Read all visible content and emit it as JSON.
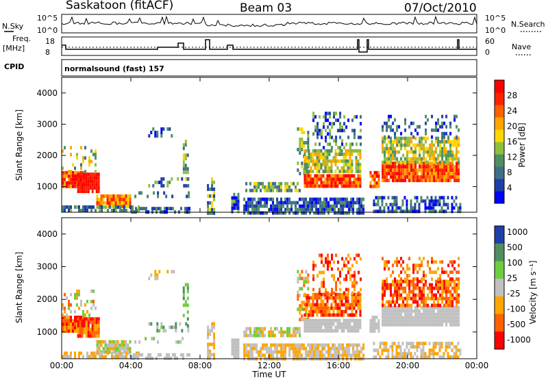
{
  "header": {
    "station": "Saskatoon (fitACF)",
    "beam": "Beam 03",
    "date": "07/Oct/2010"
  },
  "panels": {
    "nsky_label": "N.Sky",
    "nsky_ticks": [
      "10^5",
      "10^0"
    ],
    "nsearch_label": "N.Search",
    "nsearch_ticks": [
      "10^5",
      "10^0"
    ],
    "freq_label_1": "Freq.",
    "freq_label_2": "[MHz]",
    "freq_ticks": [
      "18",
      "8"
    ],
    "nave_label": "Nave",
    "nave_ticks": [
      "60",
      "0"
    ],
    "cpid_label": "CPID",
    "cpid_value": "normalsound (fast) 157"
  },
  "colors": {
    "power_scale": [
      "#0000ff",
      "#1e3fa8",
      "#3d6e8c",
      "#4f8f5f",
      "#8fbf3f",
      "#ffd700",
      "#ffa500",
      "#ff6000",
      "#ff2000",
      "#ff0000"
    ],
    "velocity_scale": [
      "#1e3fa8",
      "#4f8f5f",
      "#6ccd3e",
      "#c0c0c0",
      "#ffa500",
      "#ff6000",
      "#ff0000"
    ]
  },
  "chart_data": [
    {
      "type": "heatmap",
      "title": "",
      "xlabel": "Time UT",
      "ylabel": "Slant Range [km]",
      "x_ticks": [
        "00:00",
        "04:00",
        "08:00",
        "12:00",
        "16:00",
        "20:00",
        "00:00"
      ],
      "y_ticks": [
        "1000",
        "2000",
        "3000",
        "4000"
      ],
      "ylim": [
        180,
        4500
      ],
      "colorbar_label": "Power [dB]",
      "colorbar_ticks": [
        "4",
        "8",
        "12",
        "16",
        "20",
        "24",
        "28"
      ],
      "clim": [
        0,
        32
      ]
    },
    {
      "type": "heatmap",
      "title": "",
      "xlabel": "Time UT",
      "ylabel": "Slant Range [km]",
      "x_ticks": [
        "00:00",
        "04:00",
        "08:00",
        "12:00",
        "16:00",
        "20:00",
        "00:00"
      ],
      "y_ticks": [
        "1000",
        "2000",
        "3000",
        "4000"
      ],
      "ylim": [
        180,
        4500
      ],
      "colorbar_label": "Velocity [m s⁻¹]",
      "colorbar_ticks": [
        "1000",
        "500",
        "100",
        "25",
        "-25",
        "-100",
        "-500",
        "-1000"
      ],
      "clim": [
        -1000,
        1000
      ]
    }
  ]
}
